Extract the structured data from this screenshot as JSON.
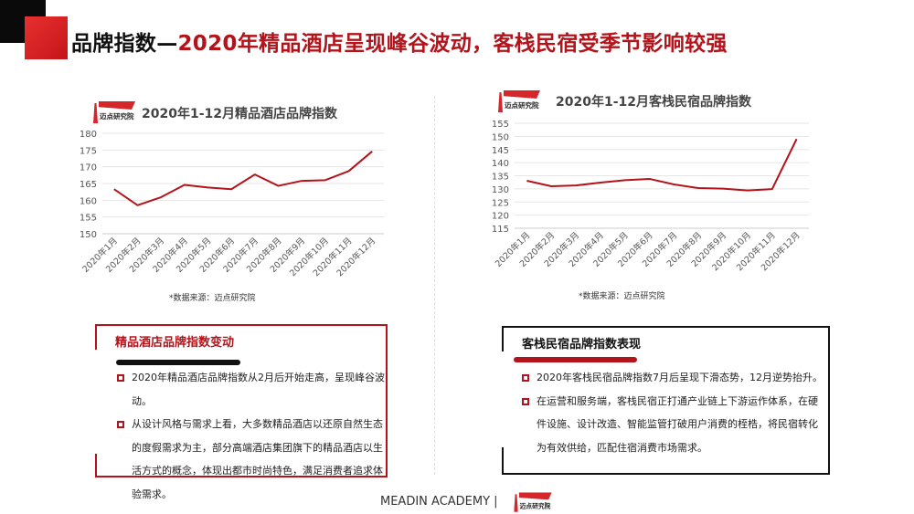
{
  "header": {
    "title_part1": "品牌指数—",
    "title_part2": "2020年精品酒店呈现峰谷波动，客栈民宿受季节影响较强"
  },
  "logo_text": "迈点研究院",
  "chart_data": [
    {
      "type": "line",
      "title": "2020年1-12月精品酒店品牌指数",
      "xlabel": "",
      "ylabel": "",
      "categories": [
        "2020年1月",
        "2020年2月",
        "2020年3月",
        "2020年4月",
        "2020年5月",
        "2020年6月",
        "2020年7月",
        "2020年8月",
        "2020年9月",
        "2020年10月",
        "2020年11月",
        "2020年12月"
      ],
      "values": [
        163.3,
        158.5,
        160.9,
        164.6,
        163.8,
        163.3,
        167.7,
        164.3,
        165.8,
        166.0,
        168.7,
        174.6
      ],
      "ylim": [
        150,
        180
      ],
      "yticks": [
        "150",
        "155",
        "160",
        "165",
        "170",
        "175",
        "180"
      ],
      "grid": true,
      "color": "#b3141b",
      "source": "*数据来源：迈点研究院"
    },
    {
      "type": "line",
      "title": "2020年1-12月客栈民宿品牌指数",
      "xlabel": "",
      "ylabel": "",
      "categories": [
        "2020年1月",
        "2020年2月",
        "2020年3月",
        "2020年4月",
        "2020年5月",
        "2020年6月",
        "2020年7月",
        "2020年8月",
        "2020年9月",
        "2020年10月",
        "2020年11月",
        "2020年12月"
      ],
      "values": [
        133.1,
        131.0,
        131.3,
        132.4,
        133.3,
        133.8,
        131.7,
        130.3,
        130.1,
        129.4,
        129.9,
        149.0
      ],
      "ylim": [
        115,
        155
      ],
      "yticks": [
        "115",
        "120",
        "125",
        "130",
        "135",
        "140",
        "145",
        "150",
        "155"
      ],
      "grid": true,
      "color": "#b3141b",
      "source": "*数据来源：迈点研究院"
    }
  ],
  "boxes": [
    {
      "title": "精品酒店品牌指数变动",
      "bullets": [
        "2020年精品酒店品牌指数从2月后开始走高，呈现峰谷波动。",
        "从设计风格与需求上看，大多数精品酒店以还原自然生态的度假需求为主，部分高端酒店集团旗下的精品酒店以生活方式的概念，体现出都市时尚特色，满足消费者追求体验需求。"
      ]
    },
    {
      "title": "客栈民宿品牌指数表现",
      "bullets": [
        "2020年客栈民宿品牌指数7月后呈现下滑态势，12月逆势抬升。",
        "在运营和服务端，客栈民宿正打通产业链上下游运作体系，在硬件设施、设计改造、智能监管打破用户消费的桎梏，将民宿转化为有效供给，匹配住宿消费市场需求。"
      ]
    }
  ],
  "footer": {
    "text": "MEADIN ACADEMY |"
  }
}
